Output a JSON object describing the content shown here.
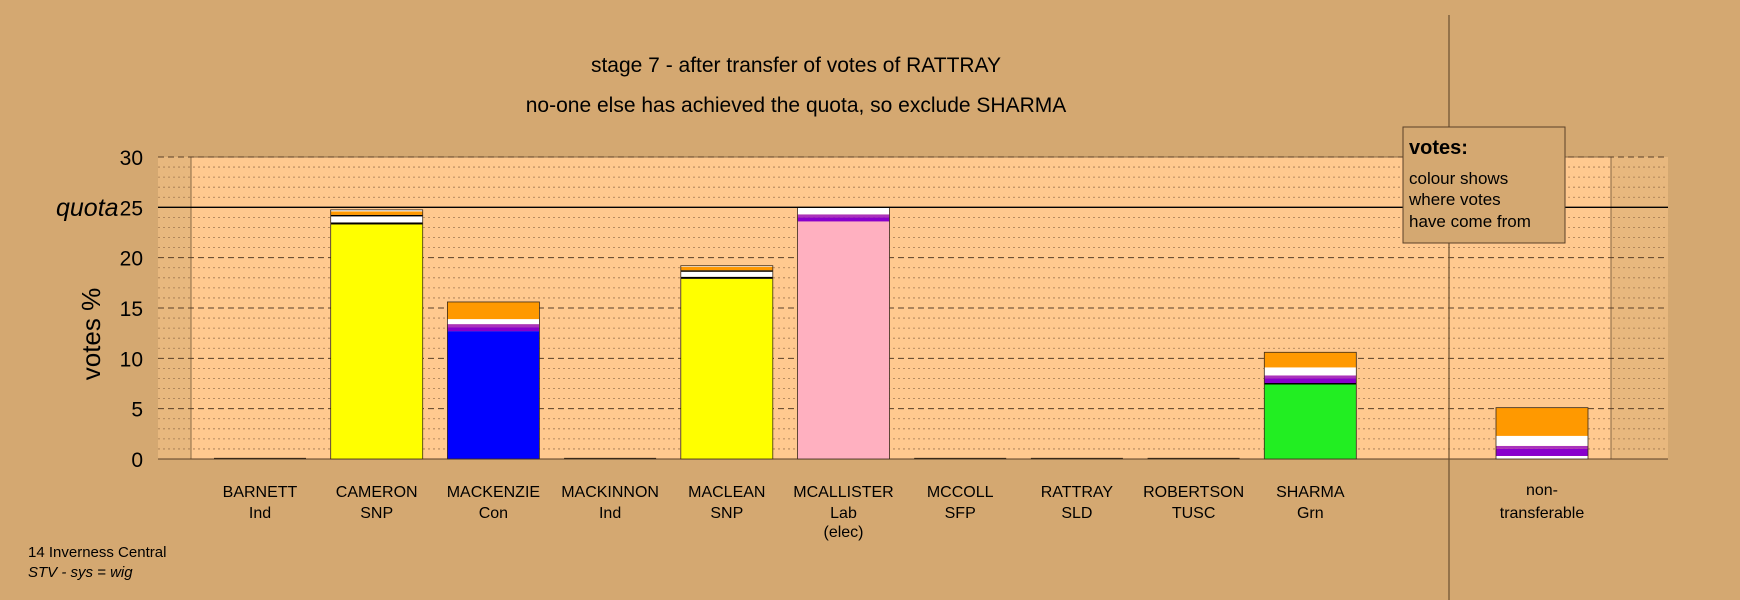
{
  "chart_data": {
    "type": "bar",
    "stacked": true,
    "title": "stage 7 - after transfer of votes of RATTRAY",
    "subtitle": "no-one else has achieved the quota, so exclude SHARMA",
    "ylabel": "votes %",
    "ylim": [
      0,
      30
    ],
    "yticks": [
      0,
      5,
      10,
      15,
      20,
      25,
      30
    ],
    "quota": 25,
    "quota_label": "quota",
    "grid": true,
    "colors": {
      "SNP": "#FFFF00",
      "Con": "#0000FF",
      "Lab": "#FFB0C0",
      "Grn": "#22EE22",
      "Ind": "#8800CC",
      "TUSC": "#FFFFFF",
      "SFP": "#AA33BB",
      "SLD": "#FF9900",
      "sep": "#000000"
    },
    "categories": [
      {
        "name": "BARNETT",
        "party": "Ind",
        "note": "",
        "segments": []
      },
      {
        "name": "CAMERON",
        "party": "SNP",
        "note": "",
        "segments": [
          {
            "src": "SNP",
            "v": 23.3
          },
          {
            "src": "sep",
            "v": 0.2
          },
          {
            "src": "TUSC",
            "v": 0.6
          },
          {
            "src": "sep",
            "v": 0.15
          },
          {
            "src": "SLD",
            "v": 0.35
          },
          {
            "src": "TUSC",
            "v": 0.15
          }
        ]
      },
      {
        "name": "MACKENZIE",
        "party": "Con",
        "note": "",
        "segments": [
          {
            "src": "Con",
            "v": 12.7
          },
          {
            "src": "Ind",
            "v": 0.4
          },
          {
            "src": "SFP",
            "v": 0.3
          },
          {
            "src": "TUSC",
            "v": 0.5
          },
          {
            "src": "SLD",
            "v": 1.7
          }
        ]
      },
      {
        "name": "MACKINNON",
        "party": "Ind",
        "note": "",
        "segments": []
      },
      {
        "name": "MACLEAN",
        "party": "SNP",
        "note": "",
        "segments": [
          {
            "src": "SNP",
            "v": 17.9
          },
          {
            "src": "sep",
            "v": 0.2
          },
          {
            "src": "TUSC",
            "v": 0.5
          },
          {
            "src": "sep",
            "v": 0.15
          },
          {
            "src": "SLD",
            "v": 0.35
          },
          {
            "src": "TUSC",
            "v": 0.1
          }
        ]
      },
      {
        "name": "MCALLISTER",
        "party": "Lab",
        "note": "(elec)",
        "segments": [
          {
            "src": "Lab",
            "v": 23.6
          },
          {
            "src": "Ind",
            "v": 0.4
          },
          {
            "src": "SFP",
            "v": 0.3
          },
          {
            "src": "TUSC",
            "v": 0.7
          }
        ]
      },
      {
        "name": "MCCOLL",
        "party": "SFP",
        "note": "",
        "segments": []
      },
      {
        "name": "RATTRAY",
        "party": "SLD",
        "note": "",
        "segments": []
      },
      {
        "name": "ROBERTSON",
        "party": "TUSC",
        "note": "",
        "segments": []
      },
      {
        "name": "SHARMA",
        "party": "Grn",
        "note": "",
        "segments": [
          {
            "src": "Grn",
            "v": 7.4
          },
          {
            "src": "sep",
            "v": 0.15
          },
          {
            "src": "Ind",
            "v": 0.45
          },
          {
            "src": "SFP",
            "v": 0.3
          },
          {
            "src": "TUSC",
            "v": 0.8
          },
          {
            "src": "SLD",
            "v": 1.5
          }
        ]
      }
    ],
    "nontransferable": {
      "label_1": "non-",
      "label_2": "transferable",
      "segments": [
        {
          "src": "TUSC",
          "v": 0.3
        },
        {
          "src": "Ind",
          "v": 0.7
        },
        {
          "src": "SFP",
          "v": 0.3
        },
        {
          "src": "TUSC",
          "v": 1.0
        },
        {
          "src": "SLD",
          "v": 2.8
        }
      ]
    }
  },
  "legend": {
    "title": "votes:",
    "lines": [
      "colour shows",
      "where votes",
      "have come from"
    ]
  },
  "footer": {
    "constituency": "14 Inverness Central",
    "system": "STV - sys = wig"
  }
}
